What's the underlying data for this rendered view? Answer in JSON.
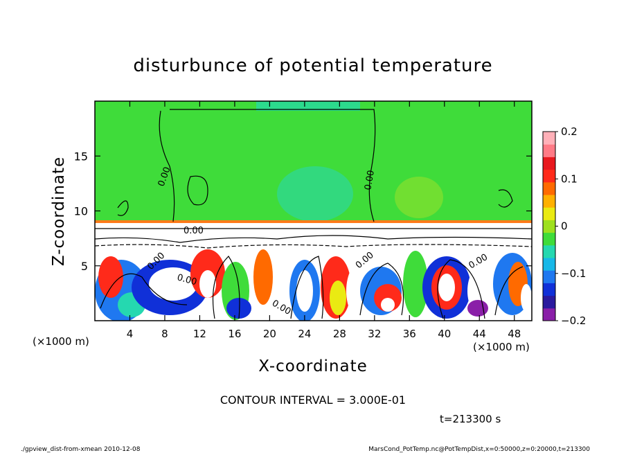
{
  "chart_data": {
    "type": "heatmap",
    "title": "disturbunce of potential temperature",
    "xlabel": "X-coordinate",
    "ylabel": "Z-coordinate",
    "x_units_left": "(×1000 m)",
    "x_units_right": "(×1000 m)",
    "xlim": [
      0,
      50
    ],
    "ylim": [
      0,
      20
    ],
    "x_ticks": [
      4,
      8,
      12,
      16,
      20,
      24,
      28,
      32,
      36,
      40,
      44,
      48
    ],
    "y_ticks": [
      5,
      10,
      15
    ],
    "colorbar": {
      "range": [
        -0.2,
        0.2
      ],
      "ticks": [
        {
          "value": 0.2,
          "label": "0.2"
        },
        {
          "value": 0.1,
          "label": "0.1"
        },
        {
          "value": 0,
          "label": "0"
        },
        {
          "value": -0.1,
          "label": "−0.1"
        },
        {
          "value": -0.2,
          "label": "−0.2"
        }
      ],
      "colors": [
        "#8a1fa8",
        "#2a1a9e",
        "#1030d8",
        "#1f78f0",
        "#17b8e8",
        "#25d8b0",
        "#3fdc3a",
        "#9ee01e",
        "#eaea12",
        "#ffb000",
        "#ff6a00",
        "#ff2a1a",
        "#e8181e",
        "#ff7a86",
        "#ffb0b8"
      ]
    },
    "contour_interval": "CONTOUR INTERVAL = 3.000E-01",
    "contour_labels": [
      "0.00",
      "0.00",
      "0.00",
      "0.00",
      "0.00",
      "0.00",
      "0.00",
      "0.00"
    ],
    "time": "t=213300 s"
  },
  "footer": {
    "left": "./gpview_dist-from-xmean  2010-12-08",
    "right": "MarsCond_PotTemp.nc@PotTempDist,x=0:50000,z=0:20000,t=213300"
  }
}
